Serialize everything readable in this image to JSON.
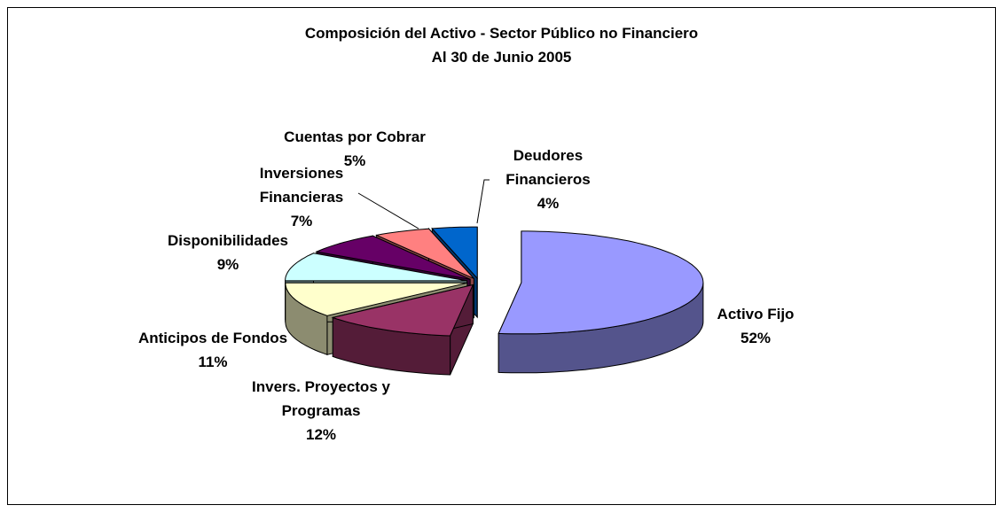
{
  "chart_data": {
    "type": "pie",
    "title": "Composición del Activo - Sector Público no Financiero",
    "subtitle": "Al 30 de Junio 2005",
    "categories": [
      "Activo Fijo",
      "Invers. Proyectos y Programas",
      "Anticipos de Fondos",
      "Disponibilidades",
      "Inversiones Financieras",
      "Cuentas por Cobrar",
      "Deudores Financieros"
    ],
    "values": [
      52,
      12,
      11,
      9,
      7,
      5,
      4
    ],
    "value_labels": [
      "52%",
      "12%",
      "11%",
      "9%",
      "7%",
      "5%",
      "4%"
    ],
    "colors": [
      "#9999ff",
      "#993366",
      "#ffffcc",
      "#ccffff",
      "#660066",
      "#ff8080",
      "#0066cc"
    ]
  }
}
